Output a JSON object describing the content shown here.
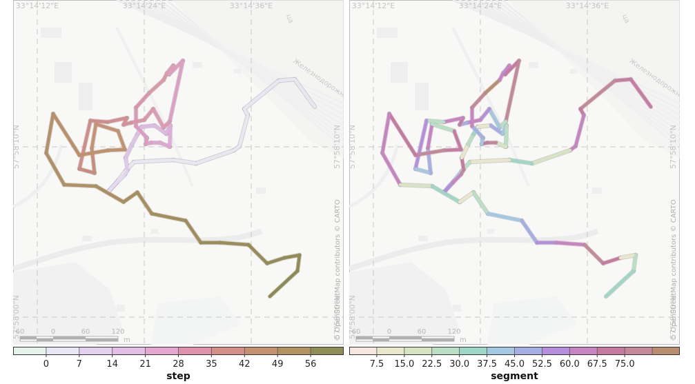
{
  "maps": [
    {
      "id": "step-map",
      "coord_labels": {
        "top": [
          "33°14'12\"E",
          "33°14'24\"E",
          "33°14'36\"E"
        ],
        "left": [
          "57°58'10\"N",
          "57°58'00\"N"
        ],
        "right": [
          "57°58'10\"N",
          "57°58'00\"N"
        ]
      },
      "attribution": "© OpenStreetMap contributors © CARTO",
      "scale": {
        "labels": [
          "60",
          "0",
          "60",
          "120"
        ],
        "unit": "m"
      },
      "street_labels": [
        "Железнодорожная",
        "ца"
      ],
      "colorbar": {
        "title": "step",
        "ticks": [
          "0",
          "7",
          "14",
          "21",
          "28",
          "35",
          "42",
          "49",
          "56"
        ],
        "colors": [
          "#e5f2ea",
          "#e9e7f3",
          "#e2d1ef",
          "#e2bfe4",
          "#e4a8cf",
          "#e090aa",
          "#d38f88",
          "#c6916f",
          "#b0935e",
          "#8f8d56"
        ]
      }
    },
    {
      "id": "segment-map",
      "coord_labels": {
        "top": [
          "33°14'12\"E",
          "33°14'24\"E",
          "33°14'36\"E"
        ],
        "left": [
          "57°58'10\"N",
          "57°58'00\"N"
        ],
        "right": [
          "57°58'10\"N",
          "57°58'00\"N"
        ]
      },
      "attribution": "© OpenStreetMap contributors © CARTO",
      "scale": {
        "labels": [
          "60",
          "0",
          "60",
          "120"
        ],
        "unit": "m"
      },
      "street_labels": [
        "Железнодорожная",
        "ца"
      ],
      "colorbar": {
        "title": "segment",
        "ticks": [
          "7.5",
          "15.0",
          "22.5",
          "30.0",
          "37.5",
          "45.0",
          "52.5",
          "60.0",
          "67.5",
          "75.0"
        ],
        "colors": [
          "#f6e6e0",
          "#e9e7cb",
          "#d7e4c1",
          "#b9e0c4",
          "#9fd7c6",
          "#a3c8e2",
          "#a6aee6",
          "#b58fdd",
          "#c983c3",
          "#c67aa0",
          "#c4889a",
          "#b88e6e"
        ]
      }
    }
  ],
  "track": {
    "step_colors": [
      "#eae6f2",
      "#eae6f2",
      "#eae6f2",
      "#eae6f2",
      "#eae6f2",
      "#eae6f2",
      "#eae6f2",
      "#eae6f2",
      "#e9e2f1",
      "#e6d9f0",
      "#e3d2ee",
      "#e0cbec",
      "#dfc3e9",
      "#dcbde6",
      "#deb9e3",
      "#e0b3de",
      "#e0acd8",
      "#e0a6d2",
      "#dfa0cb",
      "#de9bc2",
      "#dc98b8",
      "#d995ad",
      "#d99aa6",
      "#d89fb0",
      "#dca0bd",
      "#de9fc5",
      "#dc9ab5",
      "#dc98ad",
      "#db95a4",
      "#d6929b",
      "#d38f91",
      "#cf8c88",
      "#cb8a7e",
      "#c98e78",
      "#c79273",
      "#c4926d",
      "#c0916a",
      "#bb9068",
      "#b69066",
      "#b19063",
      "#ac8f60",
      "#a78e5d",
      "#a48e5b",
      "#a08e5a",
      "#9c8d58",
      "#988d57",
      "#948c55",
      "#918c54",
      "#8e8b52"
    ],
    "segment_colors": [
      "#c87ba3",
      "#c87ba3",
      "#c4889a",
      "#c67aa0",
      "#c983c3",
      "#c983c3",
      "#d7e4c1",
      "#9fd7c6",
      "#e9e7cb",
      "#b9e0c4",
      "#a3c8e2",
      "#a6aee6",
      "#b58fdd",
      "#c983c3",
      "#c4889a",
      "#c67aa0",
      "#e9e7cb",
      "#b9e0c4",
      "#9fd7c6",
      "#e9e7cb",
      "#a6aee6",
      "#a3c8e2",
      "#b9e0c4",
      "#d7e4c1",
      "#c4889a",
      "#c67aa0",
      "#a3c8e2",
      "#a6aee6",
      "#c983c3",
      "#c4889a",
      "#b88e6e",
      "#c983c3",
      "#b58fdd",
      "#c983c3",
      "#c67aa0",
      "#c4889a",
      "#b9e0c4",
      "#a3c8e2",
      "#b58fdd",
      "#c983c3",
      "#a6aee6",
      "#c67aa0",
      "#c983c3",
      "#b9e0c4",
      "#b58fdd",
      "#a3c8e2",
      "#a6aee6",
      "#c983c3",
      "#b9e0c4"
    ]
  }
}
